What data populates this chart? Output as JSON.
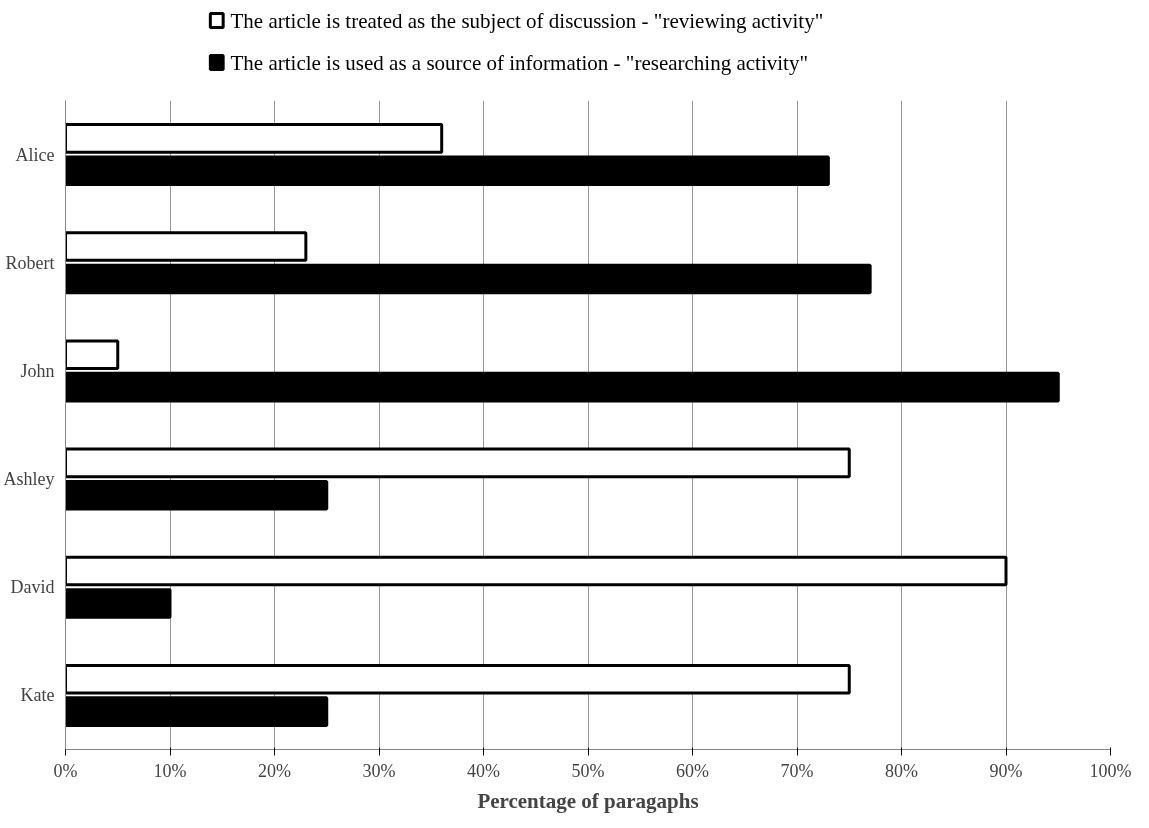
{
  "chart_data": {
    "type": "bar",
    "orientation": "horizontal",
    "xlabel": "Percentage of paragaphs",
    "categories": [
      "Alice",
      "Robert",
      "John",
      "Ashley",
      "David",
      "Kate"
    ],
    "series": [
      {
        "name": "The article is treated as the subject of discussion - \"reviewing activity\"",
        "color": "#ffffff",
        "values": [
          36,
          23,
          5,
          75,
          90,
          75
        ]
      },
      {
        "name": "The article is used as a source of information - \"researching activity\"",
        "color": "#000000",
        "values": [
          73,
          77,
          95,
          25,
          10,
          25
        ]
      }
    ],
    "xlim": [
      0,
      100
    ],
    "xticks": [
      {
        "value": 0,
        "label": "0%"
      },
      {
        "value": 10,
        "label": "10%"
      },
      {
        "value": 20,
        "label": "20%"
      },
      {
        "value": 30,
        "label": "30%"
      },
      {
        "value": 40,
        "label": "40%"
      },
      {
        "value": 50,
        "label": "50%"
      },
      {
        "value": 60,
        "label": "60%"
      },
      {
        "value": 70,
        "label": "70%"
      },
      {
        "value": 80,
        "label": "80%"
      },
      {
        "value": 90,
        "label": "90%"
      },
      {
        "value": 100,
        "label": "100%"
      }
    ],
    "grid": "x",
    "legend": "top"
  }
}
